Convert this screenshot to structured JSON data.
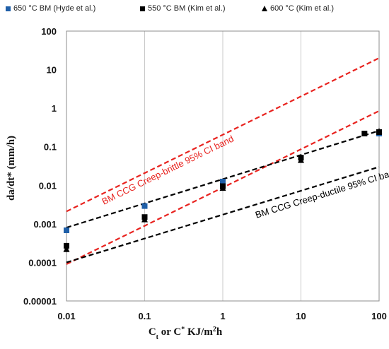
{
  "chart_data": {
    "type": "scatter",
    "xscale": "log",
    "yscale": "log",
    "xlim": [
      0.01,
      100
    ],
    "ylim": [
      1e-05,
      100
    ],
    "xticks": [
      "0.01",
      "0.1",
      "1",
      "10",
      "100"
    ],
    "yticks": [
      "0.00001",
      "0.0001",
      "0.001",
      "0.01",
      "0.1",
      "1",
      "10",
      "100"
    ],
    "xlabel_main": "C",
    "xlabel_sub": "t",
    "xlabel_rest": " or C",
    "xlabel_sup": "*",
    "xlabel_units": " KJ/m",
    "xlabel_units_sup": "2",
    "xlabel_end": "h",
    "ylabel": "da/dt* (mm/h)",
    "grid": "vertical",
    "legend_position": "top",
    "series": [
      {
        "name": "650 °C BM (Hyde et al.)",
        "marker": "square",
        "color": "#1f5fa8",
        "points": [
          [
            0.01,
            0.00068
          ],
          [
            0.1,
            0.0029
          ],
          [
            1,
            0.0125
          ],
          [
            100,
            0.22
          ]
        ]
      },
      {
        "name": "550 °C BM (Kim et al.)",
        "marker": "square",
        "color": "#000000",
        "points": [
          [
            0.01,
            0.00027
          ],
          [
            0.1,
            0.0015
          ],
          [
            1,
            0.0095
          ],
          [
            10,
            0.052
          ],
          [
            65,
            0.22
          ],
          [
            100,
            0.24
          ]
        ]
      },
      {
        "name": "600 °C (Kim et al.)",
        "marker": "triangle",
        "color": "#000000",
        "points": [
          [
            0.01,
            0.00022
          ],
          [
            0.1,
            0.0013
          ],
          [
            1,
            0.0085
          ],
          [
            10,
            0.045
          ],
          [
            100,
            0.25
          ]
        ]
      }
    ],
    "bands": [
      {
        "label": "BM CCG Creep-brittle 95% CI band",
        "color": "#e8231f",
        "lines": [
          [
            [
              0.01,
              0.0021
            ],
            [
              100,
              20
            ]
          ],
          [
            [
              0.01,
              9e-05
            ],
            [
              100,
              0.85
            ]
          ]
        ]
      },
      {
        "label": "BM CCG Creep-ductile 95% CI band",
        "color": "#000000",
        "lines": [
          [
            [
              0.01,
              0.0008
            ],
            [
              100,
              0.26
            ]
          ],
          [
            [
              0.01,
              0.0001
            ],
            [
              100,
              0.03
            ]
          ]
        ]
      }
    ]
  }
}
